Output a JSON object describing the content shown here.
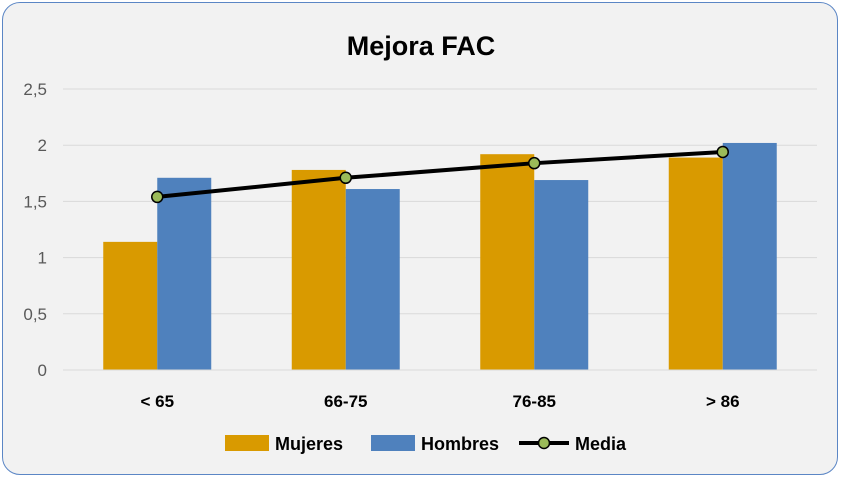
{
  "chart_data": {
    "type": "bar",
    "title": "Mejora FAC",
    "categories": [
      "< 65",
      "66-75",
      "76-85",
      "> 86"
    ],
    "series": [
      {
        "name": "Mujeres",
        "kind": "bar",
        "color": "#d99a00",
        "values": [
          1.14,
          1.78,
          1.92,
          1.89
        ]
      },
      {
        "name": "Hombres",
        "kind": "bar",
        "color": "#4f81bd",
        "values": [
          1.71,
          1.61,
          1.69,
          2.02
        ]
      },
      {
        "name": "Media",
        "kind": "line",
        "color": "#000000",
        "marker_color": "#9bbb59",
        "values": [
          1.54,
          1.71,
          1.84,
          1.94
        ]
      }
    ],
    "yticks": [
      "0",
      "0,5",
      "1",
      "1,5",
      "2",
      "2,5"
    ],
    "ylim": [
      0,
      2.5
    ],
    "grid": true,
    "legend": "bottom"
  }
}
